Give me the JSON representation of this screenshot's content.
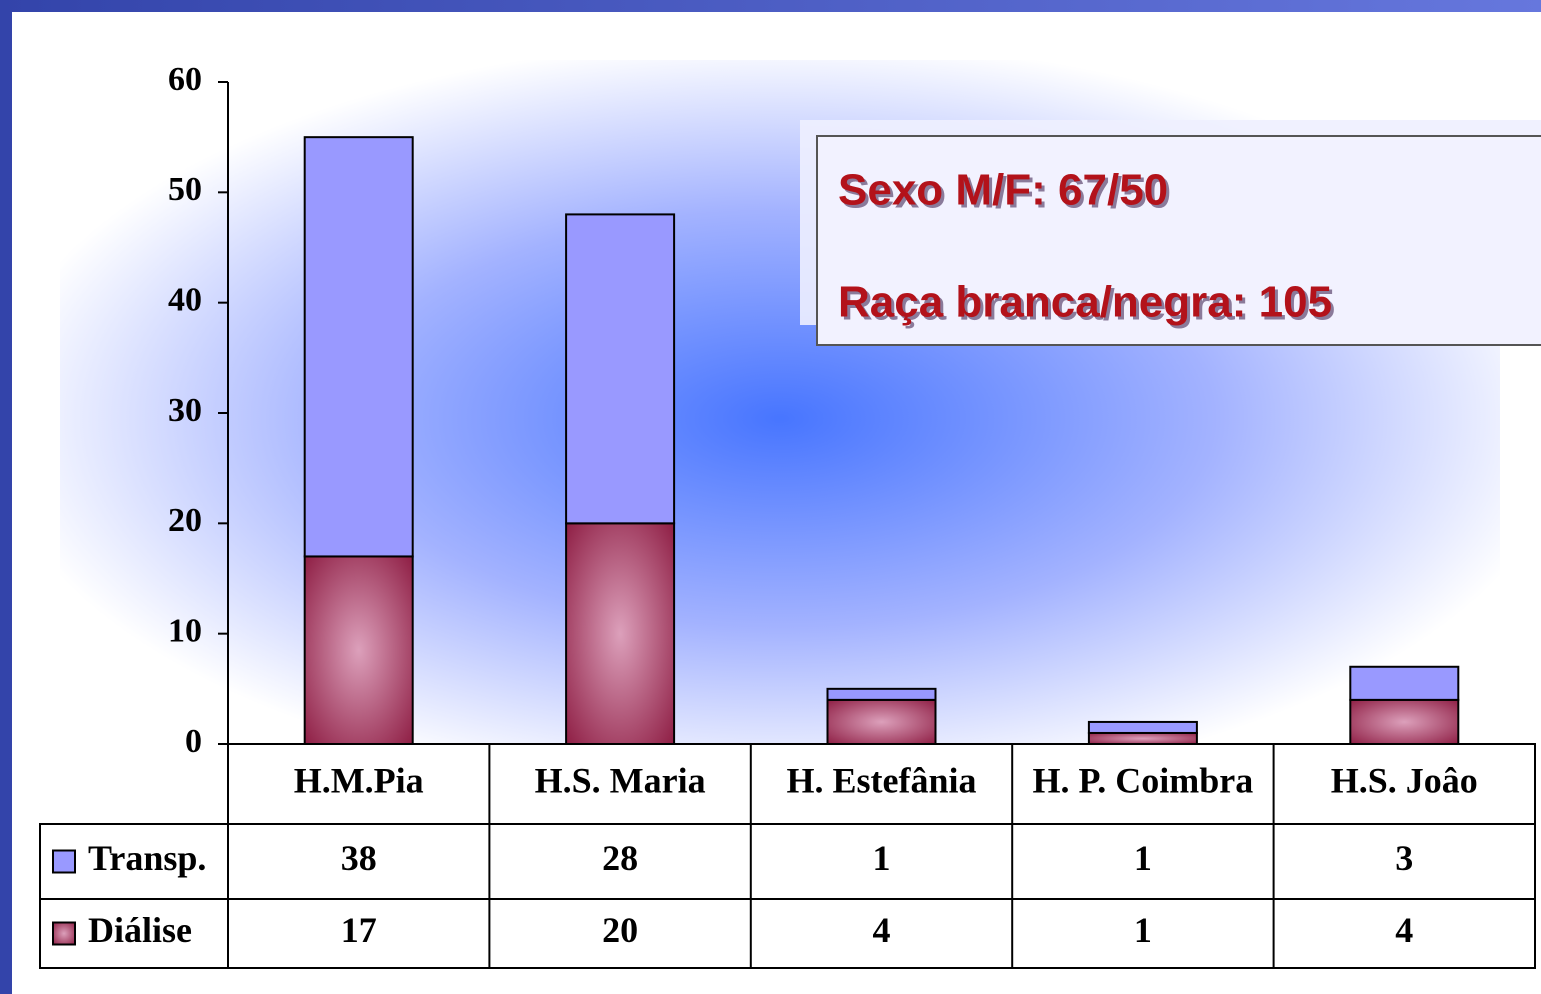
{
  "chart_data": {
    "type": "stacked-bar",
    "categories": [
      "H.M.Pia",
      "H.S. Maria",
      "H. Estefânia",
      "H. P. Coimbra",
      "H.S. Joâo"
    ],
    "series": [
      {
        "name": "Transp.",
        "color": "#9999ff",
        "values": [
          38,
          28,
          1,
          1,
          3
        ]
      },
      {
        "name": "Diálise",
        "color": "#8f1f45",
        "values": [
          17,
          20,
          4,
          1,
          4
        ]
      }
    ],
    "ylim": [
      0,
      60
    ],
    "yticks": [
      0,
      10,
      20,
      30,
      40,
      50,
      60
    ],
    "grid": false,
    "annotations": [
      "Sexo M/F: 67/50",
      "Raça branca/negra: 105"
    ]
  }
}
